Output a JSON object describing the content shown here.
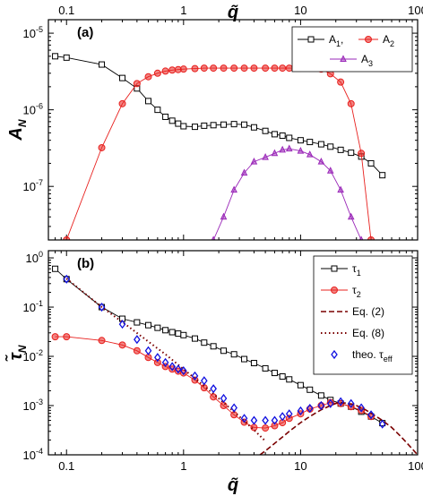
{
  "colors": {
    "black": "#000000",
    "red": "#e8201e",
    "purple": "#9a27b8",
    "blue": "#1010e0",
    "darkred": "#7a0000"
  },
  "chart_data": [
    {
      "type": "line",
      "panel_label": "(a)",
      "xlabel": "q̃",
      "ylabel": "A",
      "ylabel_sub": "N",
      "x_scale": "log",
      "y_scale": "log",
      "xlim": [
        0.07,
        100
      ],
      "ylim": [
        2e-08,
        1.5e-05
      ],
      "x_ticks": [
        0.1,
        1,
        10,
        100
      ],
      "x_tick_labels": [
        "0.1",
        "1",
        "10",
        "100"
      ],
      "y_ticks": [
        1e-07,
        1e-06,
        1e-05
      ],
      "y_tick_labels": [
        [
          "10",
          "-7"
        ],
        [
          "10",
          "-6"
        ],
        [
          "10",
          "-5"
        ]
      ],
      "legend_position": "top-right",
      "series": [
        {
          "name": "A",
          "name_sub": "1",
          "name_suffix": ",",
          "color": "black",
          "marker": "square",
          "x": [
            0.08,
            0.1,
            0.2,
            0.3,
            0.4,
            0.5,
            0.6,
            0.7,
            0.8,
            0.9,
            1.0,
            1.25,
            1.5,
            1.8,
            2.2,
            2.7,
            3.3,
            4.0,
            5.0,
            6.0,
            7.0,
            8.0,
            10,
            12,
            15,
            18,
            22,
            27,
            33,
            40,
            50
          ],
          "y": [
            5e-06,
            4.8e-06,
            3.9e-06,
            2.6e-06,
            1.9e-06,
            1.3e-06,
            1e-06,
            8.1e-07,
            7.2e-07,
            6.6e-07,
            6.1e-07,
            6e-07,
            6.2e-07,
            6.3e-07,
            6.4e-07,
            6.5e-07,
            6.4e-07,
            5.9e-07,
            5.3e-07,
            4.8e-07,
            4.6e-07,
            4.3e-07,
            4e-07,
            3.8e-07,
            3.55e-07,
            3.3e-07,
            3e-07,
            2.75e-07,
            2.45e-07,
            2e-07,
            1.4e-07
          ]
        },
        {
          "name": "A",
          "name_sub": "2",
          "name_suffix": "",
          "color": "red",
          "marker": "circle",
          "x": [
            0.1,
            0.2,
            0.3,
            0.4,
            0.5,
            0.6,
            0.7,
            0.8,
            0.9,
            1.0,
            1.25,
            1.5,
            1.8,
            2.2,
            2.7,
            3.3,
            4.0,
            5.0,
            6.0,
            7.0,
            8.0,
            10,
            12,
            15,
            18,
            22,
            27,
            33,
            40
          ],
          "y": [
            2e-08,
            3.2e-07,
            1.2e-06,
            2.2e-06,
            2.7e-06,
            3e-06,
            3.2e-06,
            3.3e-06,
            3.35e-06,
            3.4e-06,
            3.45e-06,
            3.5e-06,
            3.5e-06,
            3.5e-06,
            3.5e-06,
            3.5e-06,
            3.5e-06,
            3.5e-06,
            3.5e-06,
            3.5e-06,
            3.5e-06,
            3.5e-06,
            3.5e-06,
            3.4e-06,
            2.95e-06,
            2.3e-06,
            1.2e-06,
            2.7e-07,
            2e-08
          ]
        },
        {
          "name": "A",
          "name_sub": "3",
          "name_suffix": "",
          "color": "purple",
          "marker": "triangle",
          "x": [
            1.8,
            2.2,
            2.7,
            3.3,
            4.0,
            5.0,
            6.0,
            7.0,
            8.0,
            10,
            12,
            15,
            18,
            22,
            27,
            33
          ],
          "y": [
            2e-08,
            4e-08,
            9e-08,
            1.5e-07,
            2.1e-07,
            2.4e-07,
            2.7e-07,
            3e-07,
            3.1e-07,
            2.9e-07,
            2.6e-07,
            2.1e-07,
            1.6e-07,
            9e-08,
            4e-08,
            2e-08
          ]
        }
      ]
    },
    {
      "type": "line",
      "panel_label": "(b)",
      "xlabel": "q̃",
      "ylabel": "τ̃",
      "ylabel_sub": "N",
      "x_scale": "log",
      "y_scale": "log",
      "xlim": [
        0.07,
        100
      ],
      "ylim": [
        0.0001,
        1.4
      ],
      "x_ticks": [
        0.1,
        1,
        10,
        100
      ],
      "x_tick_labels": [
        "0.1",
        "1",
        "10",
        "100"
      ],
      "y_ticks": [
        0.0001,
        0.001,
        0.01,
        0.1,
        1
      ],
      "y_tick_labels": [
        [
          "10",
          "-4"
        ],
        [
          "10",
          "-3"
        ],
        [
          "10",
          "-2"
        ],
        [
          "10",
          "-1"
        ],
        [
          "10",
          "0"
        ]
      ],
      "legend_position": "top-right",
      "series": [
        {
          "name": "τ",
          "name_sub": "1",
          "color": "black",
          "marker": "square",
          "style": "solid",
          "x": [
            0.08,
            0.1,
            0.2,
            0.3,
            0.4,
            0.5,
            0.6,
            0.7,
            0.8,
            0.9,
            1.0,
            1.25,
            1.5,
            1.8,
            2.2,
            2.7,
            3.3,
            4.0,
            5.0,
            6.0,
            7.0,
            8.0,
            10,
            12,
            15,
            18,
            22,
            27,
            33,
            40,
            50
          ],
          "y": [
            0.6,
            0.37,
            0.1,
            0.058,
            0.049,
            0.043,
            0.038,
            0.034,
            0.031,
            0.029,
            0.027,
            0.023,
            0.019,
            0.016,
            0.013,
            0.011,
            0.0088,
            0.0073,
            0.0057,
            0.0046,
            0.0039,
            0.0034,
            0.0026,
            0.0021,
            0.0016,
            0.0013,
            0.0011,
            0.00095,
            0.00075,
            0.0006,
            0.00044
          ]
        },
        {
          "name": "τ",
          "name_sub": "2",
          "color": "red",
          "marker": "circle",
          "style": "solid",
          "x": [
            0.08,
            0.1,
            0.2,
            0.3,
            0.4,
            0.5,
            0.6,
            0.7,
            0.8,
            0.9,
            1.0,
            1.25,
            1.5,
            1.8,
            2.2,
            2.7,
            3.3,
            4.0,
            5.0,
            6.0,
            7.0,
            8.0,
            10,
            12,
            15,
            18,
            22,
            27,
            33,
            40
          ],
          "y": [
            0.025,
            0.025,
            0.021,
            0.017,
            0.013,
            0.0095,
            0.0075,
            0.0062,
            0.0055,
            0.005,
            0.0046,
            0.0033,
            0.0023,
            0.0015,
            0.001,
            0.00065,
            0.00046,
            0.00036,
            0.00035,
            0.00039,
            0.00045,
            0.00055,
            0.00068,
            0.00085,
            0.001,
            0.00115,
            0.0011,
            0.00095,
            0.0008,
            0.0006
          ]
        },
        {
          "name": "Eq. (2)",
          "color": "darkred",
          "marker": "none",
          "style": "dashed",
          "x": [
            4.5,
            5,
            6,
            7,
            8,
            10,
            12,
            15,
            18,
            21,
            25,
            30,
            35,
            40,
            50,
            60,
            70,
            80,
            100
          ],
          "y": [
            0.0001,
            0.00012,
            0.00017,
            0.00023,
            0.0003,
            0.00045,
            0.0006,
            0.00082,
            0.001,
            0.00115,
            0.00112,
            0.001,
            0.00085,
            0.0007,
            0.0005,
            0.00036,
            0.00025,
            0.00018,
            0.0001
          ]
        },
        {
          "name": "Eq. (8)",
          "color": "darkred",
          "marker": "none",
          "style": "dotted",
          "x": [
            0.1,
            0.2,
            0.3,
            0.5,
            0.7,
            1,
            1.5,
            2,
            3,
            4,
            5
          ],
          "y": [
            0.38,
            0.1,
            0.05,
            0.02,
            0.011,
            0.0055,
            0.0025,
            0.0014,
            0.0006,
            0.00032,
            0.00019
          ]
        },
        {
          "name": "theo. τ",
          "name_sub": "eff",
          "color": "blue",
          "marker": "diamond",
          "style": "none",
          "x": [
            0.1,
            0.2,
            0.3,
            0.4,
            0.5,
            0.6,
            0.7,
            0.8,
            0.9,
            1.0,
            1.25,
            1.5,
            1.8,
            2.2,
            2.7,
            3.3,
            4.0,
            5.0,
            6.0,
            7.0,
            8.0,
            10,
            12,
            15,
            18,
            22,
            27,
            33,
            40,
            50
          ],
          "y": [
            0.37,
            0.1,
            0.045,
            0.022,
            0.013,
            0.0095,
            0.0075,
            0.0062,
            0.0055,
            0.0051,
            0.004,
            0.0032,
            0.0022,
            0.0014,
            0.0009,
            0.00055,
            0.0005,
            0.0005,
            0.0005,
            0.0006,
            0.00068,
            0.00078,
            0.00088,
            0.001,
            0.0011,
            0.0012,
            0.0011,
            0.0009,
            0.00065,
            0.00042
          ]
        }
      ]
    }
  ]
}
